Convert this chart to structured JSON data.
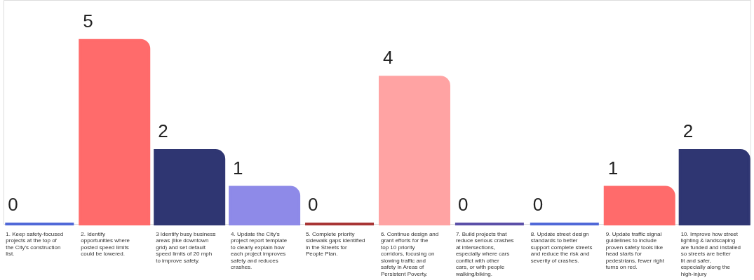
{
  "chart_data": {
    "type": "bar",
    "categories": [
      "1. Keep safety-focused projects at the top of the City's construction list.",
      "2. Identify opportunities where posted speed limits could be lowered.",
      "3 Identify busy business areas (like downtown grid) and set default speed limits of 20 mph to improve safety.",
      "4. Update the City's project report template to clearly explain how each project improves safety and reduces crashes.",
      "5. Complete priority sidewalk gaps identified in the Streets for People Plan.",
      "6. Continue design and grant efforts for the top 10 priority corridors, focusing on slowing traffic and safety in Areas of Persistent Poverty.",
      "7. Build projects that reduce serious crashes at intersections, especially where cars conflict with other cars, or with people walking/biking.",
      "8. Update street design standards to better support complete streets and reduce the risk and severity of crashes.",
      "9. Update traffic signal guidelines to include proven safety tools like head starts for pedestrians, fewer right turns on red.",
      "10. Improve how street lighting & landscaping are funded and installed so streets are better lit and safer, especially along the high-injury"
    ],
    "values": [
      0,
      5,
      2,
      1,
      0,
      4,
      0,
      0,
      1,
      2
    ],
    "colors": [
      "#5068d8",
      "#ff6b6b",
      "#2f3672",
      "#8e8ae8",
      "#a83434",
      "#ffa3a3",
      "#5b4fa8",
      "#5068d8",
      "#ff6b6b",
      "#2f3672"
    ],
    "data_labels": true
  }
}
